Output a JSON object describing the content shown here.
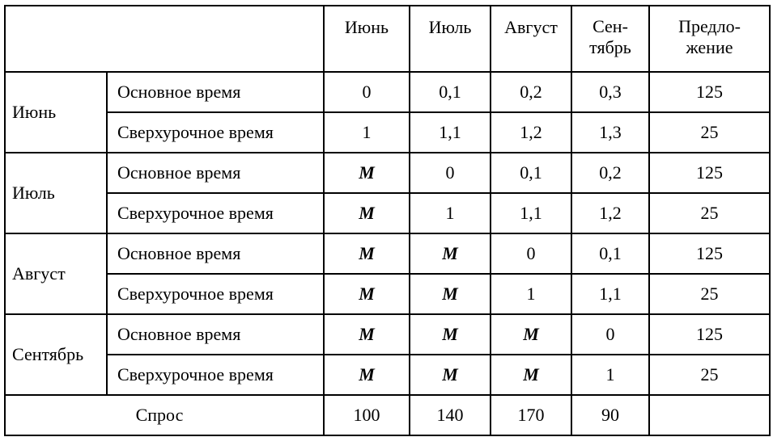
{
  "columns": [
    {
      "line1": "Июнь",
      "line2": ""
    },
    {
      "line1": "Июль",
      "line2": ""
    },
    {
      "line1": "Август",
      "line2": ""
    },
    {
      "line1": "Сен-",
      "line2": "тябрь"
    },
    {
      "line1": "Предло-",
      "line2": "жение"
    }
  ],
  "rows": [
    {
      "month": "Июнь",
      "regular": {
        "label": "Основное время",
        "values": [
          "0",
          "0,1",
          "0,2",
          "0,3"
        ],
        "supply": "125"
      },
      "overtime": {
        "label": "Сверхурочное время",
        "values": [
          "1",
          "1,1",
          "1,2",
          "1,3"
        ],
        "supply": "25"
      }
    },
    {
      "month": "Июль",
      "regular": {
        "label": "Основное время",
        "values": [
          "M",
          "0",
          "0,1",
          "0,2"
        ],
        "supply": "125"
      },
      "overtime": {
        "label": "Сверхурочное время",
        "values": [
          "M",
          "1",
          "1,1",
          "1,2"
        ],
        "supply": "25"
      }
    },
    {
      "month": "Август",
      "regular": {
        "label": "Основное время",
        "values": [
          "M",
          "M",
          "0",
          "0,1"
        ],
        "supply": "125"
      },
      "overtime": {
        "label": "Сверхурочное время",
        "values": [
          "M",
          "M",
          "1",
          "1,1"
        ],
        "supply": "25"
      }
    },
    {
      "month": "Сентябрь",
      "regular": {
        "label": "Основное время",
        "values": [
          "M",
          "M",
          "M",
          "0"
        ],
        "supply": "125"
      },
      "overtime": {
        "label": "Сверхурочное время",
        "values": [
          "M",
          "M",
          "M",
          "1"
        ],
        "supply": "25"
      }
    }
  ],
  "demand": {
    "label": "Спрос",
    "values": [
      "100",
      "140",
      "170",
      "90"
    ],
    "supply": ""
  }
}
